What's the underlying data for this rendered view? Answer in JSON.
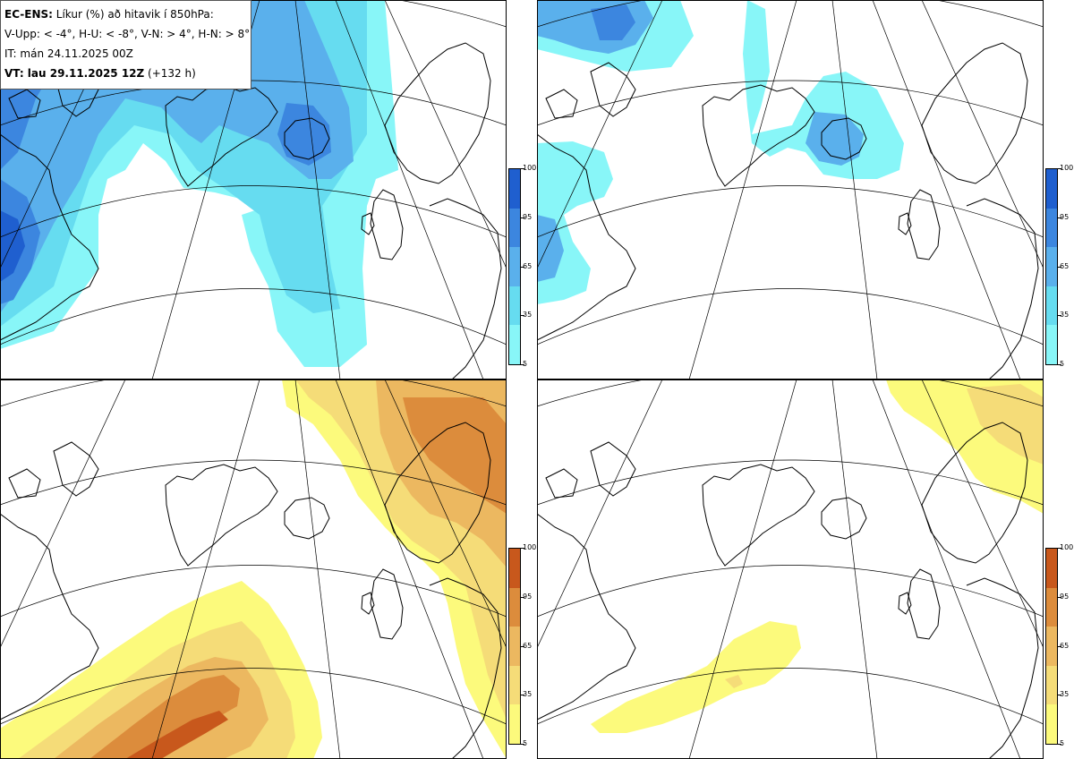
{
  "legend": {
    "model": "EC-ENS:",
    "title": "Líkur (%) að hitavik í 850hPa:",
    "thresholds": "V-Upp: < -4°, H-U: < -8°, V-N: > 4°, H-N: > 8°",
    "issue_time": "IT: mán 24.11.2025 00Z",
    "valid_label": "VT: lau 29.11.2025 12Z",
    "lead": "(+132 h)"
  },
  "colorbars": {
    "cold": {
      "ticks": [
        "100",
        "95",
        "65",
        "35",
        "5"
      ],
      "colors": [
        "#1f5fcf",
        "#3c86df",
        "#5ab0ec",
        "#66dcf0",
        "#88f6f8"
      ]
    },
    "warm": {
      "ticks": [
        "100",
        "95",
        "65",
        "35",
        "5"
      ],
      "colors": [
        "#c8581c",
        "#dc8c3c",
        "#ecb860",
        "#f5dc78",
        "#fcfa7c"
      ]
    }
  },
  "panels": [
    {
      "id": "top-left",
      "variable": "V-Upp"
    },
    {
      "id": "top-right",
      "variable": "H-U"
    },
    {
      "id": "bottom-left",
      "variable": "V-N"
    },
    {
      "id": "bottom-right",
      "variable": "H-N"
    }
  ]
}
